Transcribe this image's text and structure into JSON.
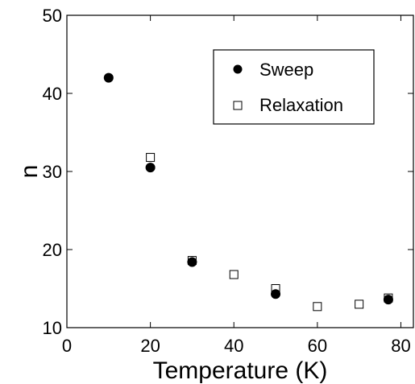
{
  "chart_data": {
    "type": "scatter",
    "xlabel": "Temperature (K)",
    "ylabel": "n",
    "xlim": [
      0,
      83
    ],
    "ylim": [
      10,
      50
    ],
    "xticks": [
      "0",
      "20",
      "40",
      "60",
      "80"
    ],
    "yticks": [
      "10",
      "20",
      "30",
      "40",
      "50"
    ],
    "grid": false,
    "legend_position": "top-right",
    "series": [
      {
        "name": "Sweep",
        "marker": "filled-circle",
        "color": "#000000",
        "x": [
          10,
          20,
          30,
          50,
          77
        ],
        "y": [
          42.0,
          30.5,
          18.4,
          14.3,
          13.6
        ]
      },
      {
        "name": "Relaxation",
        "marker": "open-square",
        "color": "#000000",
        "x": [
          20,
          30,
          40,
          50,
          60,
          70,
          77
        ],
        "y": [
          31.8,
          18.6,
          16.8,
          15.0,
          12.7,
          13.0,
          13.8
        ]
      }
    ]
  }
}
